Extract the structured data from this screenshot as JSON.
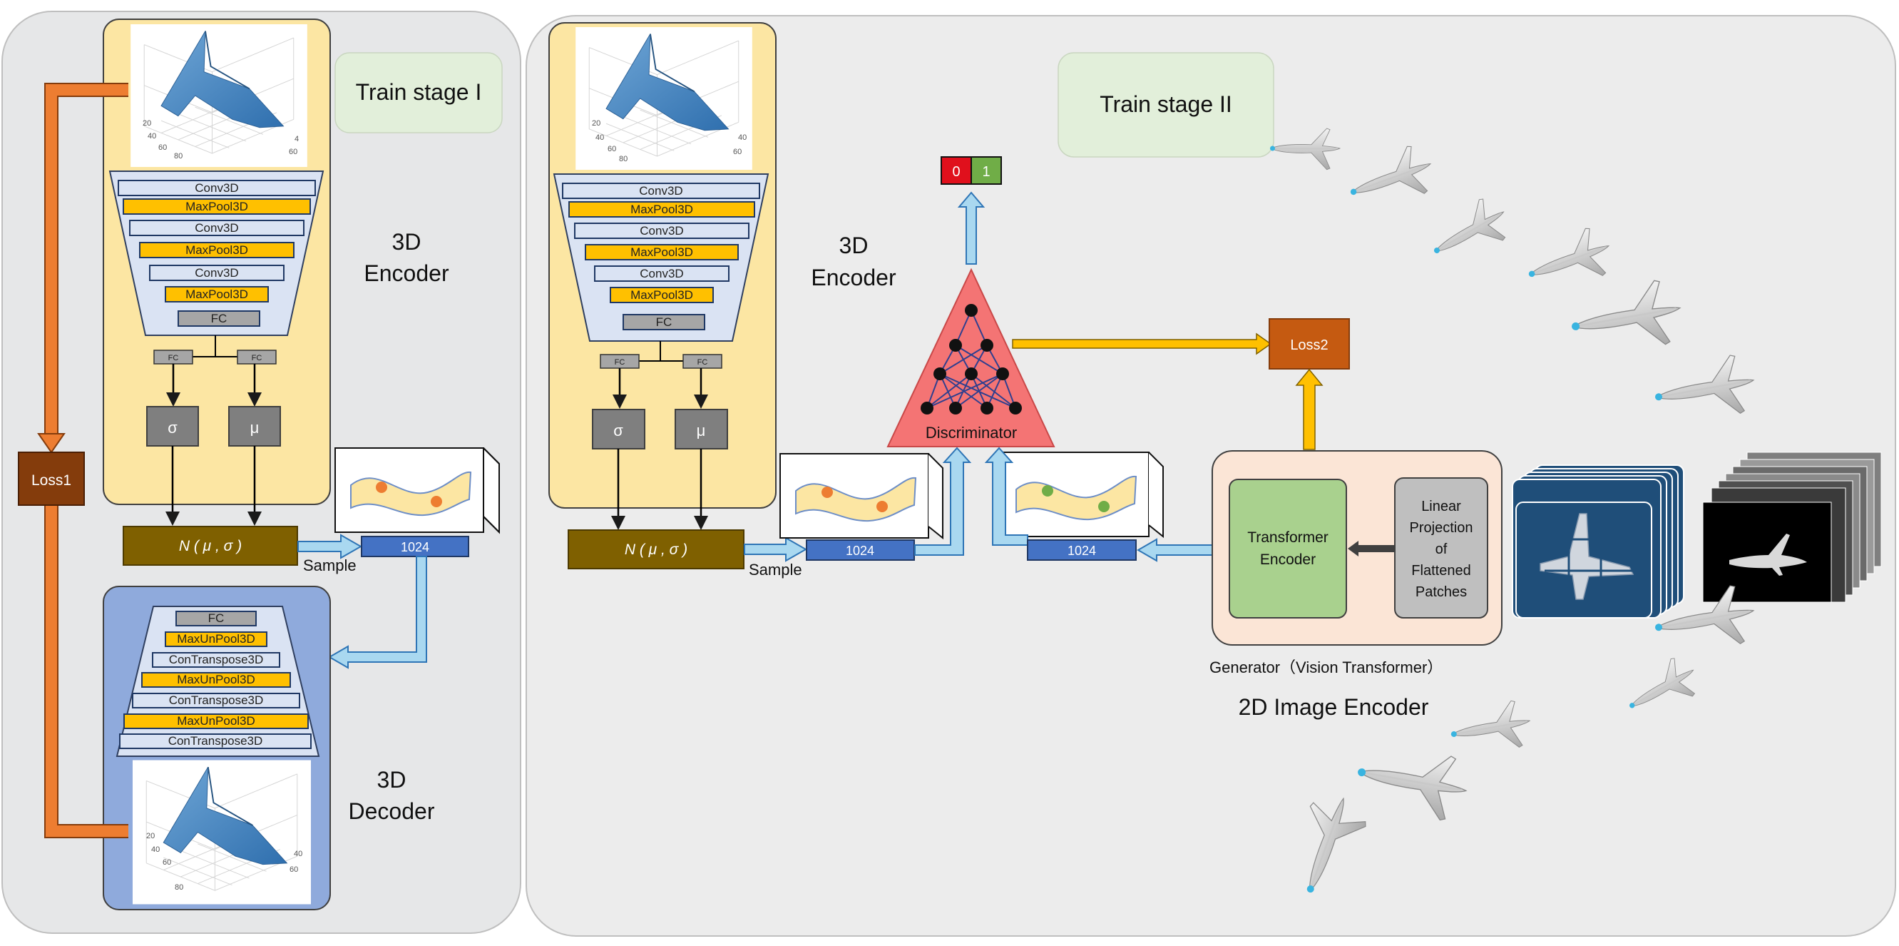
{
  "stage1": {
    "title": "Train stage I",
    "encoder_label": [
      "3D",
      "Encoder"
    ],
    "decoder_label": [
      "3D",
      "Decoder"
    ],
    "encoder_layers": [
      "Conv3D",
      "MaxPool3D",
      "Conv3D",
      "MaxPool3D",
      "Conv3D",
      "MaxPool3D",
      "FC"
    ],
    "fc_small": "FC",
    "sigma": "σ",
    "mu": "μ",
    "normal": "N ( μ , σ )",
    "sample": "Sample",
    "latent": "1024",
    "loss": "Loss1",
    "decoder_layers": [
      "FC",
      "MaxUnPool3D",
      "ConTranspose3D",
      "MaxUnPool3D",
      "ConTranspose3D",
      "MaxUnPool3D",
      "ConTranspose3D"
    ],
    "plot_ticks_top": [
      "20",
      "40",
      "60",
      "80",
      "4",
      "60",
      "80"
    ],
    "plot_ticks_bottom": [
      "20",
      "40",
      "60",
      "80",
      "40",
      "60",
      "80"
    ]
  },
  "stage2": {
    "title": "Train stage II",
    "encoder_label": [
      "3D",
      "Encoder"
    ],
    "encoder_layers": [
      "Conv3D",
      "MaxPool3D",
      "Conv3D",
      "MaxPool3D",
      "Conv3D",
      "MaxPool3D",
      "FC"
    ],
    "fc_small": "FC",
    "sigma": "σ",
    "mu": "μ",
    "normal": "N ( μ , σ )",
    "sample": "Sample",
    "latent_a": "1024",
    "latent_b": "1024",
    "discriminator": "Discriminator",
    "out_0": "0",
    "out_1": "1",
    "loss": "Loss2",
    "transformer": [
      "Transformer",
      "Encoder"
    ],
    "projection": [
      "Linear",
      "Projection",
      "of",
      "Flattened",
      "Patches"
    ],
    "generator": "Generator（Vision Transformer）",
    "image_encoder": "2D Image Encoder",
    "plot_ticks": [
      "20",
      "40",
      "60",
      "80",
      "40",
      "60",
      "80"
    ]
  },
  "colors": {
    "panel_bg": "#e6e7e8",
    "panel2_bg": "#ececec",
    "encoder_bg": "#fce6a3",
    "decoder_bg": "#8faadc",
    "layer_blue": "#dae3f3",
    "layer_gold": "#ffc000",
    "gray_box": "#7f7f7f",
    "normal_box": "#7f6000",
    "latent": "#4472c4",
    "arrow_light": "#a9d8f0",
    "arrow_orange": "#ed7d31",
    "loss1": "#843c0c",
    "loss2": "#c55a11",
    "disc": "#f47474",
    "stage_label_bg": "#e2efda",
    "generator_bg": "#fbe5d6",
    "transformer_bg": "#a9d18e",
    "projection_bg": "#bfbfbf",
    "out0": "#e0101c",
    "out1": "#70ad47"
  }
}
